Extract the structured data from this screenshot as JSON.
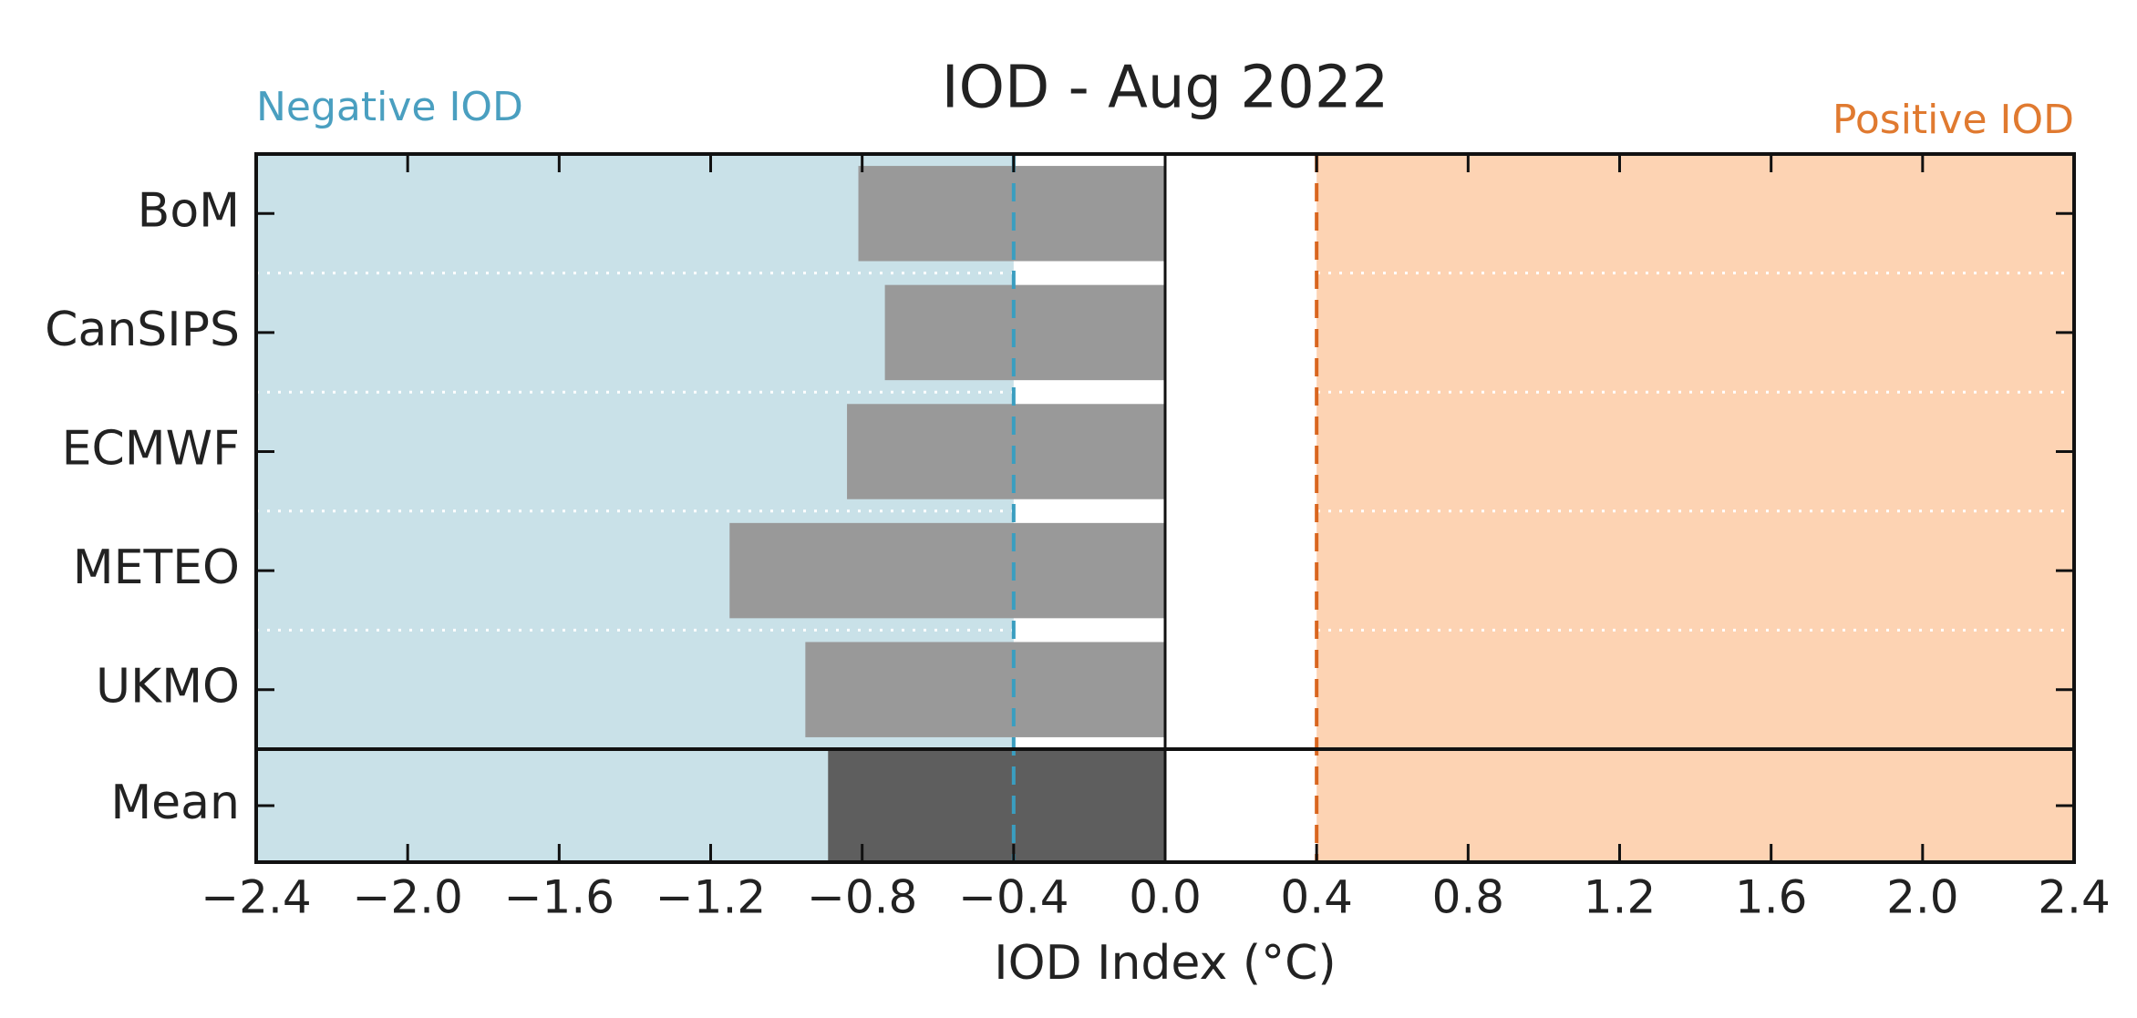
{
  "chart_data": {
    "type": "bar",
    "orientation": "horizontal",
    "title": "IOD - Aug 2022",
    "xlabel": "IOD Index (°C)",
    "categories": [
      "BoM",
      "CanSIPS",
      "ECMWF",
      "METEO",
      "UKMO",
      "Mean"
    ],
    "values": [
      -0.81,
      -0.74,
      -0.84,
      -1.15,
      -0.95,
      -0.89
    ],
    "colors": [
      "#999999",
      "#999999",
      "#999999",
      "#999999",
      "#999999",
      "#5e5e5e"
    ],
    "xlim": [
      -2.4,
      2.4
    ],
    "xticks": [
      {
        "value": -2.4,
        "label": "−2.4"
      },
      {
        "value": -2.0,
        "label": "−2.0"
      },
      {
        "value": -1.6,
        "label": "−1.6"
      },
      {
        "value": -1.2,
        "label": "−1.2"
      },
      {
        "value": -0.8,
        "label": "−0.8"
      },
      {
        "value": -0.4,
        "label": "−0.4"
      },
      {
        "value": 0,
        "label": "0.0"
      },
      0.4,
      0.8,
      1.2,
      1.6,
      {
        "value": 2.0,
        "label": "2.0"
      },
      2.4
    ],
    "regions": [
      {
        "label": "Negative IOD",
        "color": "#c9e1e8",
        "text_color": "#4a9fc0",
        "range": [
          -2.4,
          -0.4
        ]
      },
      {
        "label": "Positive IOD",
        "color": "#fdd3b3",
        "text_color": "#e07a30",
        "range": [
          0.4,
          2.4
        ]
      }
    ],
    "threshold_lines": [
      {
        "value": -0.4,
        "color": "#3a9ec0"
      },
      {
        "value": 0.4,
        "color": "#d9661f"
      }
    ]
  }
}
